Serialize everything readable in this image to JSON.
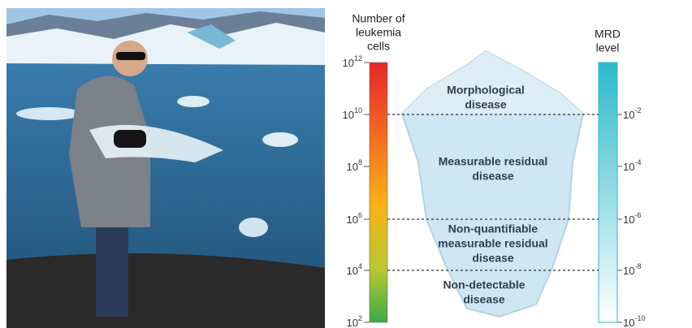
{
  "diagram": {
    "left_axis": {
      "title": [
        "Number of",
        "leukemia",
        "cells"
      ],
      "ticks": [
        {
          "base": "10",
          "exponent": "12"
        },
        {
          "base": "10",
          "exponent": "10"
        },
        {
          "base": "10",
          "exponent": "8"
        },
        {
          "base": "10",
          "exponent": "6"
        },
        {
          "base": "10",
          "exponent": "4"
        },
        {
          "base": "10",
          "exponent": "2"
        }
      ]
    },
    "right_axis": {
      "title": [
        "MRD",
        "level"
      ],
      "ticks": [
        {
          "base": "10",
          "exponent": "-2"
        },
        {
          "base": "10",
          "exponent": "-4"
        },
        {
          "base": "10",
          "exponent": "-6"
        },
        {
          "base": "10",
          "exponent": "-8"
        },
        {
          "base": "10",
          "exponent": "-10"
        }
      ]
    },
    "regions": [
      {
        "label": [
          "Morphological",
          "disease"
        ]
      },
      {
        "label": [
          "Measurable residual",
          "disease"
        ]
      },
      {
        "label": [
          "Non-quantifiable",
          "measurable residual",
          "disease"
        ]
      },
      {
        "label": [
          "Non-detectable",
          "disease"
        ]
      }
    ]
  }
}
